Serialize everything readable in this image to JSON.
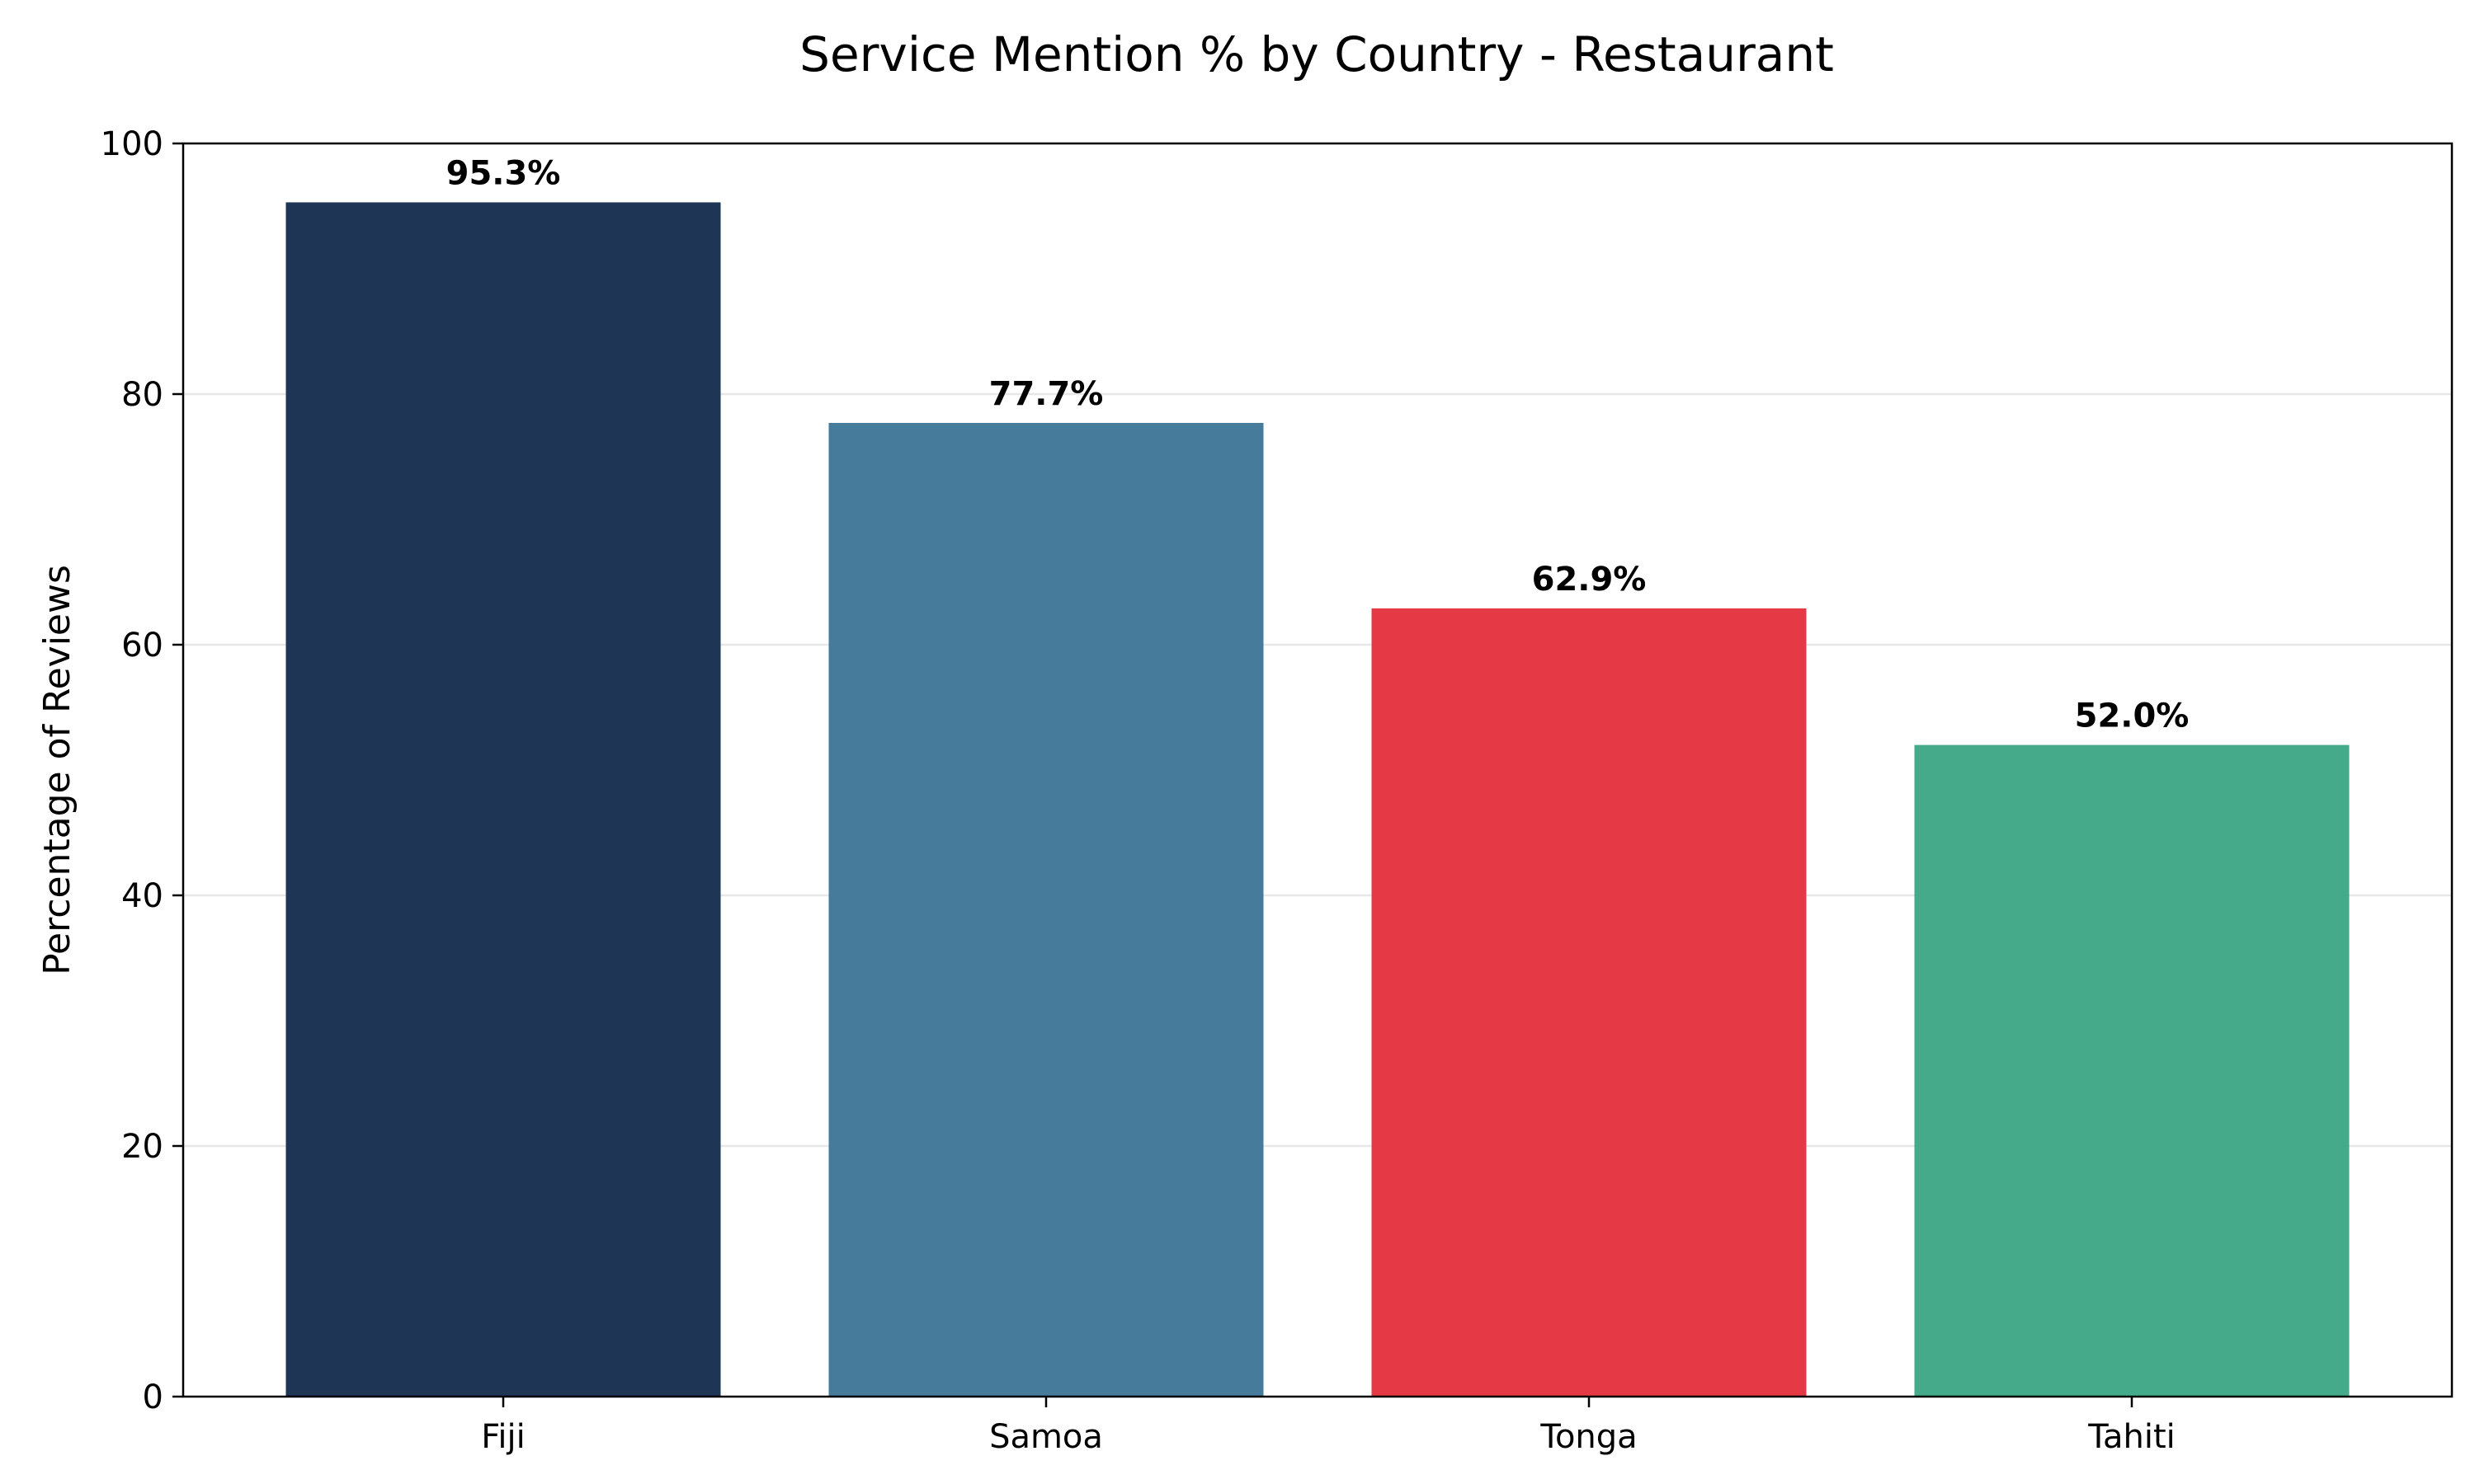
{
  "chart_data": {
    "type": "bar",
    "title": "Service Mention % by Country - Restaurant",
    "xlabel": "",
    "ylabel": "Percentage of Reviews",
    "categories": [
      "Fiji",
      "Samoa",
      "Tonga",
      "Tahiti"
    ],
    "values": [
      95.3,
      77.7,
      62.9,
      52.0
    ],
    "value_labels": [
      "95.3%",
      "77.7%",
      "62.9%",
      "52.0%"
    ],
    "colors": [
      "#1f3556",
      "#467b9c",
      "#e63946",
      "#44aa8a"
    ],
    "ylim": [
      0,
      100
    ],
    "yticks": [
      0,
      20,
      40,
      60,
      80,
      100
    ],
    "grid": "y-axis, light gray",
    "legend": "none"
  }
}
